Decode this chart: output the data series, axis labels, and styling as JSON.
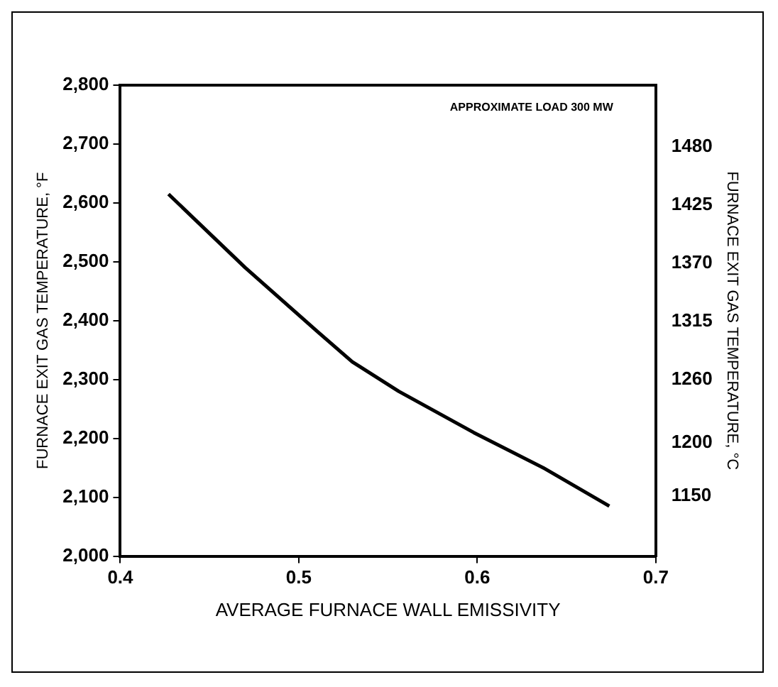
{
  "chart_data": {
    "type": "line",
    "xlabel": "AVERAGE FURNACE WALL EMISSIVITY",
    "ylabel": "FURNACE EXIT GAS TEMPERATURE, °F",
    "y2label": "FURNACE EXIT GAS TEMPERATURE, °C",
    "annotations": [
      "APPROXIMATE LOAD 300 MW"
    ],
    "x": [
      0.427,
      0.47,
      0.511,
      0.53,
      0.556,
      0.598,
      0.637,
      0.674
    ],
    "series": [
      {
        "color": "#000000",
        "values": [
          2615,
          2490,
          2380,
          2330,
          2280,
          2210,
          2150,
          2085
        ]
      }
    ],
    "xlim": [
      0.4,
      0.7
    ],
    "xticks": [
      0.4,
      0.5,
      0.6,
      0.7
    ],
    "ylim": [
      2000,
      2800
    ],
    "yticks": [
      {
        "value": 2000,
        "label": "2,000"
      },
      {
        "value": 2100,
        "label": "2,100"
      },
      {
        "value": 2200,
        "label": "2,200"
      },
      {
        "value": 2300,
        "label": "2,300"
      },
      {
        "value": 2400,
        "label": "2,400"
      },
      {
        "value": 2500,
        "label": "2,500"
      },
      {
        "value": 2600,
        "label": "2,600"
      },
      {
        "value": 2700,
        "label": "2,700"
      },
      {
        "value": 2800,
        "label": "2,800"
      }
    ],
    "y2lim": [
      1093,
      1538
    ],
    "y2ticks": [
      1150,
      1200,
      1260,
      1315,
      1370,
      1425,
      1480
    ],
    "grid": false,
    "legend": false,
    "marker": "none",
    "line_style": "solid"
  }
}
